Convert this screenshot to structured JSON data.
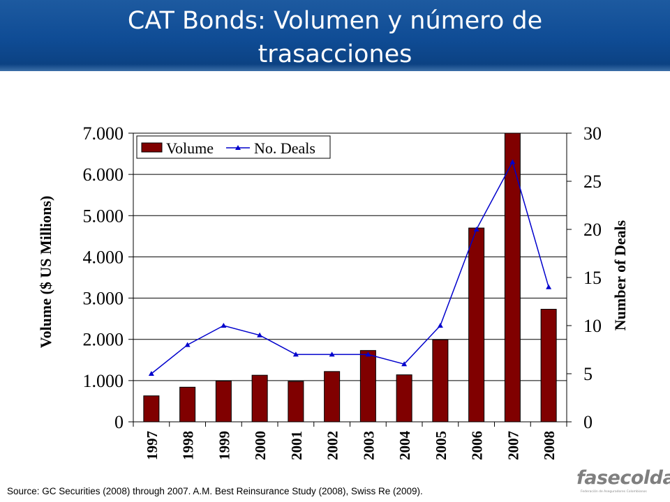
{
  "header": {
    "title_line1": "CAT Bonds: Volumen y número de",
    "title_line2": "trasacciones"
  },
  "chart_data": {
    "type": "bar+line",
    "categories": [
      "1997",
      "1998",
      "1999",
      "2000",
      "2001",
      "2002",
      "2003",
      "2004",
      "2005",
      "2006",
      "2007",
      "2008"
    ],
    "series": [
      {
        "name": "Volume",
        "type": "bar",
        "axis": "left",
        "color": "#800000",
        "values": [
          630,
          840,
          990,
          1130,
          980,
          1220,
          1730,
          1140,
          1990,
          4700,
          7000,
          2730
        ]
      },
      {
        "name": "No. Deals",
        "type": "line",
        "axis": "right",
        "color": "#0000cc",
        "values": [
          5,
          8,
          10,
          9,
          7,
          7,
          7,
          6,
          10,
          20,
          27,
          14
        ]
      }
    ],
    "ylabel": "Volume ($ US Millions)",
    "y2label": "Number of Deals",
    "ylim": [
      0,
      7000
    ],
    "y2lim": [
      0,
      30
    ],
    "yticks": [
      "0",
      "1.000",
      "2.000",
      "3.000",
      "4.000",
      "5.000",
      "6.000",
      "7.000"
    ],
    "y2ticks": [
      "0",
      "5",
      "10",
      "15",
      "20",
      "25",
      "30"
    ],
    "grid": true,
    "legend": "top-left"
  },
  "footer": {
    "source": "Source: GC Securities (2008) through 2007. A.M. Best Reinsurance Study (2008), Swiss Re (2009).",
    "logo_text": "fasecolda",
    "logo_tagline": "Federación de Aseguradores Colombianos"
  },
  "colors": {
    "header_bg": "#0f4c95",
    "bar": "#800000",
    "line": "#0000cc"
  }
}
